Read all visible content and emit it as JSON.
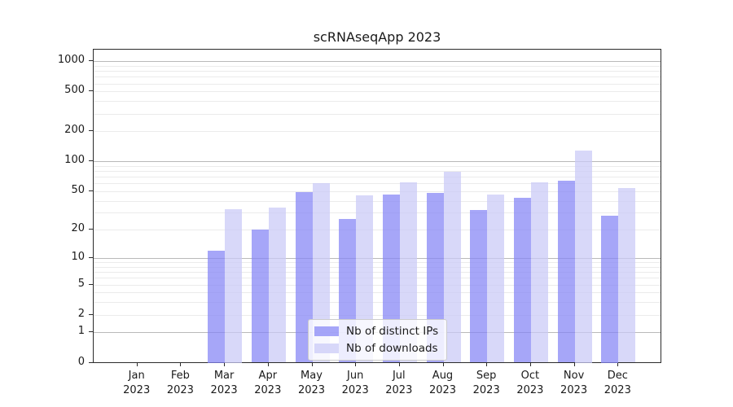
{
  "chart_data": {
    "type": "bar",
    "title": "scRNAseqApp 2023",
    "categories": [
      "Jan",
      "Feb",
      "Mar",
      "Apr",
      "May",
      "Jun",
      "Jul",
      "Aug",
      "Sep",
      "Oct",
      "Nov",
      "Dec"
    ],
    "year": "2023",
    "series": [
      {
        "name": "Nb of distinct IPs",
        "color": "#8484f5",
        "values": [
          0,
          0,
          12,
          20,
          49,
          26,
          46,
          48,
          32,
          43,
          64,
          28
        ]
      },
      {
        "name": "Nb of downloads",
        "color": "#c9c9f6",
        "values": [
          0,
          0,
          33,
          34,
          60,
          45,
          61,
          78,
          46,
          61,
          128,
          54
        ]
      }
    ],
    "bar_alpha": 0.72,
    "ylabel": "",
    "xlabel": "",
    "y_axis": {
      "scale": "log1p",
      "ticks": [
        0,
        1,
        2,
        5,
        10,
        20,
        50,
        100,
        200,
        500,
        1000
      ],
      "range": [
        0,
        1300
      ]
    },
    "grid": {
      "on": true,
      "major_values": [
        1,
        10,
        100,
        1000
      ],
      "minor_multiples": [
        2,
        3,
        4,
        5,
        6,
        7,
        8,
        9
      ],
      "minor_decades": [
        1,
        10,
        100
      ]
    },
    "legend": {
      "position": "lower center"
    },
    "colors": {
      "major_grid": "#b9b9b9",
      "minor_grid": "#ebebeb",
      "axis": "#2b2b2b",
      "text": "#1a1a1a",
      "legend_border": "#cccccc"
    }
  }
}
